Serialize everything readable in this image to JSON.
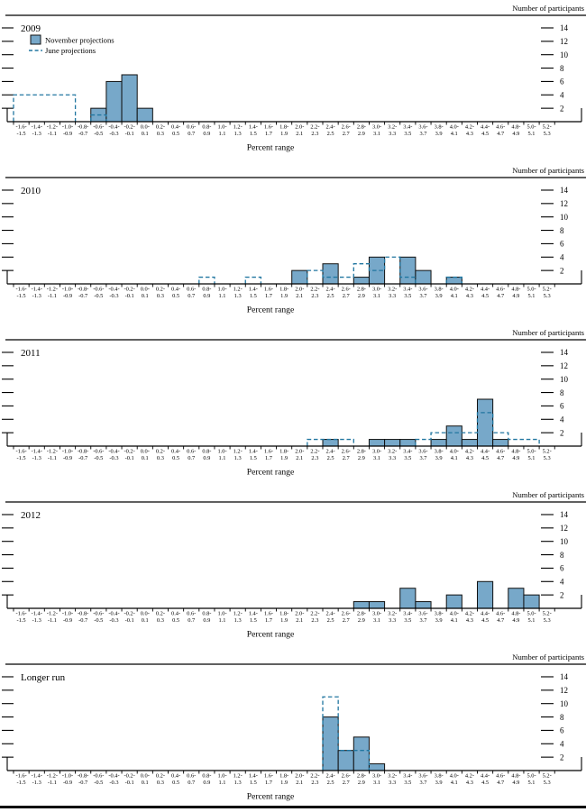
{
  "figure": {
    "y_axis_label": "Number of participants",
    "x_axis_label": "Percent range",
    "y_ticks": [
      2,
      4,
      6,
      8,
      10,
      12,
      14
    ],
    "y_max": 14,
    "bin_start": -1.6,
    "bin_step": 0.2,
    "bin_count": 35,
    "last_bin_label": "5.2-5.3"
  },
  "legend": {
    "november_label": "November projections",
    "june_label": "June projections"
  },
  "colors": {
    "bar_fill": "#77a8c9",
    "bar_border": "#101010",
    "june_dash": "#2076a0",
    "axis": "#000000"
  },
  "chart_data": [
    {
      "type": "bar",
      "title": "2009",
      "show_legend": true,
      "series": [
        {
          "name": "November projections",
          "style": "filled-bar",
          "bins": [
            {
              "start": -0.6,
              "count": 2
            },
            {
              "start": -0.4,
              "count": 6
            },
            {
              "start": -0.2,
              "count": 7
            },
            {
              "start": 0.0,
              "count": 2
            }
          ]
        },
        {
          "name": "June projections",
          "style": "dashed-outline",
          "bins": [
            {
              "start": -1.6,
              "count": 4
            },
            {
              "start": -1.4,
              "count": 4
            },
            {
              "start": -1.2,
              "count": 4
            },
            {
              "start": -1.0,
              "count": 4
            },
            {
              "start": -0.6,
              "count": 1
            }
          ]
        }
      ]
    },
    {
      "type": "bar",
      "title": "2010",
      "show_legend": false,
      "series": [
        {
          "name": "November projections",
          "style": "filled-bar",
          "bins": [
            {
              "start": 2.0,
              "count": 2
            },
            {
              "start": 2.4,
              "count": 3
            },
            {
              "start": 2.8,
              "count": 1
            },
            {
              "start": 3.0,
              "count": 4
            },
            {
              "start": 3.4,
              "count": 4
            },
            {
              "start": 3.6,
              "count": 2
            },
            {
              "start": 4.0,
              "count": 1
            }
          ]
        },
        {
          "name": "June projections",
          "style": "dashed-outline",
          "bins": [
            {
              "start": 0.8,
              "count": 1
            },
            {
              "start": 1.4,
              "count": 1
            },
            {
              "start": 2.2,
              "count": 2
            },
            {
              "start": 2.4,
              "count": 1
            },
            {
              "start": 2.6,
              "count": 1
            },
            {
              "start": 2.8,
              "count": 3
            },
            {
              "start": 3.0,
              "count": 2
            },
            {
              "start": 3.2,
              "count": 4
            },
            {
              "start": 3.4,
              "count": 1
            },
            {
              "start": 4.0,
              "count": 1
            }
          ]
        }
      ]
    },
    {
      "type": "bar",
      "title": "2011",
      "show_legend": false,
      "series": [
        {
          "name": "November projections",
          "style": "filled-bar",
          "bins": [
            {
              "start": 2.4,
              "count": 1
            },
            {
              "start": 3.0,
              "count": 1
            },
            {
              "start": 3.2,
              "count": 1
            },
            {
              "start": 3.4,
              "count": 1
            },
            {
              "start": 3.8,
              "count": 1
            },
            {
              "start": 4.0,
              "count": 3
            },
            {
              "start": 4.2,
              "count": 1
            },
            {
              "start": 4.4,
              "count": 7
            },
            {
              "start": 4.6,
              "count": 1
            }
          ]
        },
        {
          "name": "June projections",
          "style": "dashed-outline",
          "bins": [
            {
              "start": 2.2,
              "count": 1
            },
            {
              "start": 2.4,
              "count": 1
            },
            {
              "start": 2.6,
              "count": 1
            },
            {
              "start": 3.6,
              "count": 1
            },
            {
              "start": 3.8,
              "count": 2
            },
            {
              "start": 4.0,
              "count": 2
            },
            {
              "start": 4.2,
              "count": 2
            },
            {
              "start": 4.4,
              "count": 5
            },
            {
              "start": 4.6,
              "count": 2
            },
            {
              "start": 4.8,
              "count": 1
            },
            {
              "start": 5.0,
              "count": 1
            }
          ]
        }
      ]
    },
    {
      "type": "bar",
      "title": "2012",
      "show_legend": false,
      "series": [
        {
          "name": "November projections",
          "style": "filled-bar",
          "bins": [
            {
              "start": 2.8,
              "count": 1
            },
            {
              "start": 3.0,
              "count": 1
            },
            {
              "start": 3.4,
              "count": 3
            },
            {
              "start": 3.6,
              "count": 1
            },
            {
              "start": 4.0,
              "count": 2
            },
            {
              "start": 4.4,
              "count": 4
            },
            {
              "start": 4.8,
              "count": 3
            },
            {
              "start": 5.0,
              "count": 2
            }
          ]
        },
        {
          "name": "June projections",
          "style": "dashed-outline",
          "bins": []
        }
      ]
    },
    {
      "type": "bar",
      "title": "Longer run",
      "show_legend": false,
      "series": [
        {
          "name": "November projections",
          "style": "filled-bar",
          "bins": [
            {
              "start": 2.4,
              "count": 8
            },
            {
              "start": 2.6,
              "count": 3
            },
            {
              "start": 2.8,
              "count": 5
            },
            {
              "start": 3.0,
              "count": 1
            }
          ]
        },
        {
          "name": "June projections",
          "style": "dashed-outline",
          "bins": [
            {
              "start": 2.4,
              "count": 11
            },
            {
              "start": 2.6,
              "count": 3
            },
            {
              "start": 2.8,
              "count": 3
            }
          ]
        }
      ]
    }
  ]
}
